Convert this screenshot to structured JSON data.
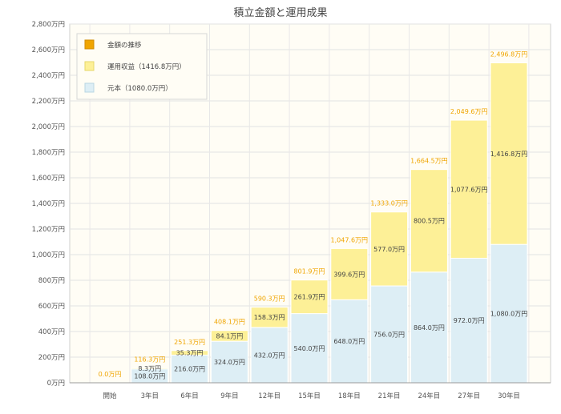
{
  "chart_data": {
    "type": "bar",
    "stacked": true,
    "title": "積立金額と運用成果",
    "categories": [
      "開始",
      "3年目",
      "6年目",
      "9年目",
      "12年目",
      "15年目",
      "18年目",
      "21年目",
      "24年目",
      "27年目",
      "30年目"
    ],
    "series": [
      {
        "name": "元本（1080.0万円）",
        "color": "#ddeef5",
        "values": [
          0,
          108.0,
          216.0,
          324.0,
          432.0,
          540.0,
          648.0,
          756.0,
          864.0,
          972.0,
          1080.0
        ],
        "labels": [
          "",
          "108.0万円",
          "216.0万円",
          "324.0万円",
          "432.0万円",
          "540.0万円",
          "648.0万円",
          "756.0万円",
          "864.0万円",
          "972.0万円",
          "1,080.0万円"
        ]
      },
      {
        "name": "運用収益（1416.8万円）",
        "color": "#fdf097",
        "values": [
          0,
          8.3,
          35.3,
          84.1,
          158.3,
          261.9,
          399.6,
          577.0,
          800.5,
          1077.6,
          1416.8
        ],
        "labels": [
          "",
          "8.3万円",
          "35.3万円",
          "84.1万円",
          "158.3万円",
          "261.9万円",
          "399.6万円",
          "577.0万円",
          "800.5万円",
          "1,077.6万円",
          "1,416.8万円"
        ]
      }
    ],
    "totals": {
      "name": "金額の推移",
      "color": "#f0a500",
      "values": [
        0,
        116.3,
        251.3,
        408.1,
        590.3,
        801.9,
        1047.6,
        1333.0,
        1664.5,
        2049.6,
        2496.8
      ],
      "labels": [
        "0.0万円",
        "116.3万円",
        "251.3万円",
        "408.1万円",
        "590.3万円",
        "801.9万円",
        "1,047.6万円",
        "1,333.0万円",
        "1,664.5万円",
        "2,049.6万円",
        "2,496.8万円"
      ]
    },
    "ylim": [
      0,
      2800
    ],
    "yticks": [
      0,
      200,
      400,
      600,
      800,
      1000,
      1200,
      1400,
      1600,
      1800,
      2000,
      2200,
      2400,
      2600,
      2800
    ],
    "ytick_labels": [
      "0万円",
      "200万円",
      "400万円",
      "600万円",
      "800万円",
      "1,000万円",
      "1,200万円",
      "1,400万円",
      "1,600万円",
      "1,800万円",
      "2,000万円",
      "2,200万円",
      "2,400万円",
      "2,600万円",
      "2,800万円"
    ],
    "legend_position": "top-left",
    "grid": true
  }
}
